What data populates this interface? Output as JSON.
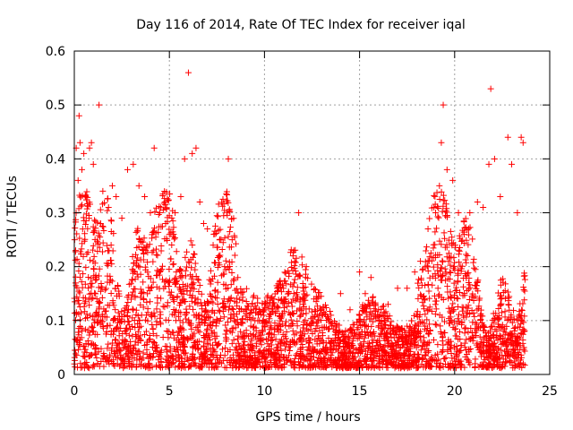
{
  "chart_data": {
    "type": "scatter",
    "title": "Day 116 of 2014, Rate Of TEC Index for receiver iqal",
    "xlabel": "GPS time / hours",
    "ylabel": "ROTI / TECUs",
    "xlim": [
      0,
      25
    ],
    "ylim": [
      0,
      0.6
    ],
    "x_ticks": [
      0,
      5,
      10,
      15,
      20,
      25
    ],
    "x_tick_labels": [
      "0",
      "5",
      "10",
      "15",
      "20",
      "25"
    ],
    "y_ticks": [
      0,
      0.1,
      0.2,
      0.3,
      0.4,
      0.5,
      0.6
    ],
    "y_tick_labels": [
      "0",
      "0.1",
      "0.2",
      "0.3",
      "0.4",
      "0.5",
      "0.6"
    ],
    "grid": true,
    "marker": "+",
    "series": [
      {
        "name": "ROTI",
        "color": "#ff0000",
        "points": [
          [
            0.1,
            0.42
          ],
          [
            0.2,
            0.36
          ],
          [
            0.25,
            0.48
          ],
          [
            0.3,
            0.43
          ],
          [
            0.4,
            0.38
          ],
          [
            0.5,
            0.41
          ],
          [
            0.6,
            0.33
          ],
          [
            0.8,
            0.42
          ],
          [
            0.9,
            0.43
          ],
          [
            1.0,
            0.39
          ],
          [
            1.3,
            0.5
          ],
          [
            1.5,
            0.34
          ],
          [
            1.8,
            0.31
          ],
          [
            2.0,
            0.35
          ],
          [
            2.2,
            0.33
          ],
          [
            2.5,
            0.29
          ],
          [
            2.8,
            0.38
          ],
          [
            3.1,
            0.39
          ],
          [
            3.4,
            0.35
          ],
          [
            3.7,
            0.33
          ],
          [
            4.0,
            0.3
          ],
          [
            4.2,
            0.42
          ],
          [
            4.5,
            0.3
          ],
          [
            4.8,
            0.28
          ],
          [
            5.0,
            0.26
          ],
          [
            5.3,
            0.3
          ],
          [
            5.6,
            0.33
          ],
          [
            5.8,
            0.4
          ],
          [
            6.0,
            0.56
          ],
          [
            6.2,
            0.41
          ],
          [
            6.4,
            0.42
          ],
          [
            6.6,
            0.32
          ],
          [
            6.8,
            0.28
          ],
          [
            7.0,
            0.27
          ],
          [
            7.3,
            0.24
          ],
          [
            7.6,
            0.22
          ],
          [
            7.9,
            0.2
          ],
          [
            8.1,
            0.4
          ],
          [
            8.3,
            0.25
          ],
          [
            8.6,
            0.18
          ],
          [
            9.0,
            0.12
          ],
          [
            9.5,
            0.1
          ],
          [
            10.0,
            0.12
          ],
          [
            10.5,
            0.14
          ],
          [
            11.0,
            0.16
          ],
          [
            11.5,
            0.22
          ],
          [
            11.8,
            0.3
          ],
          [
            12.2,
            0.2
          ],
          [
            12.6,
            0.14
          ],
          [
            13.0,
            0.12
          ],
          [
            13.5,
            0.11
          ],
          [
            14.0,
            0.15
          ],
          [
            14.5,
            0.12
          ],
          [
            15.0,
            0.19
          ],
          [
            15.3,
            0.15
          ],
          [
            15.6,
            0.18
          ],
          [
            16.0,
            0.12
          ],
          [
            16.5,
            0.13
          ],
          [
            17.0,
            0.16
          ],
          [
            17.5,
            0.16
          ],
          [
            17.9,
            0.19
          ],
          [
            18.2,
            0.21
          ],
          [
            18.6,
            0.27
          ],
          [
            19.0,
            0.3
          ],
          [
            19.2,
            0.35
          ],
          [
            19.3,
            0.43
          ],
          [
            19.4,
            0.5
          ],
          [
            19.6,
            0.38
          ],
          [
            19.9,
            0.36
          ],
          [
            20.2,
            0.3
          ],
          [
            20.5,
            0.26
          ],
          [
            20.8,
            0.3
          ],
          [
            21.2,
            0.32
          ],
          [
            21.5,
            0.31
          ],
          [
            21.8,
            0.39
          ],
          [
            21.9,
            0.53
          ],
          [
            22.1,
            0.4
          ],
          [
            22.4,
            0.33
          ],
          [
            22.8,
            0.44
          ],
          [
            23.0,
            0.39
          ],
          [
            23.3,
            0.3
          ],
          [
            23.5,
            0.44
          ],
          [
            23.6,
            0.43
          ]
        ]
      }
    ]
  }
}
